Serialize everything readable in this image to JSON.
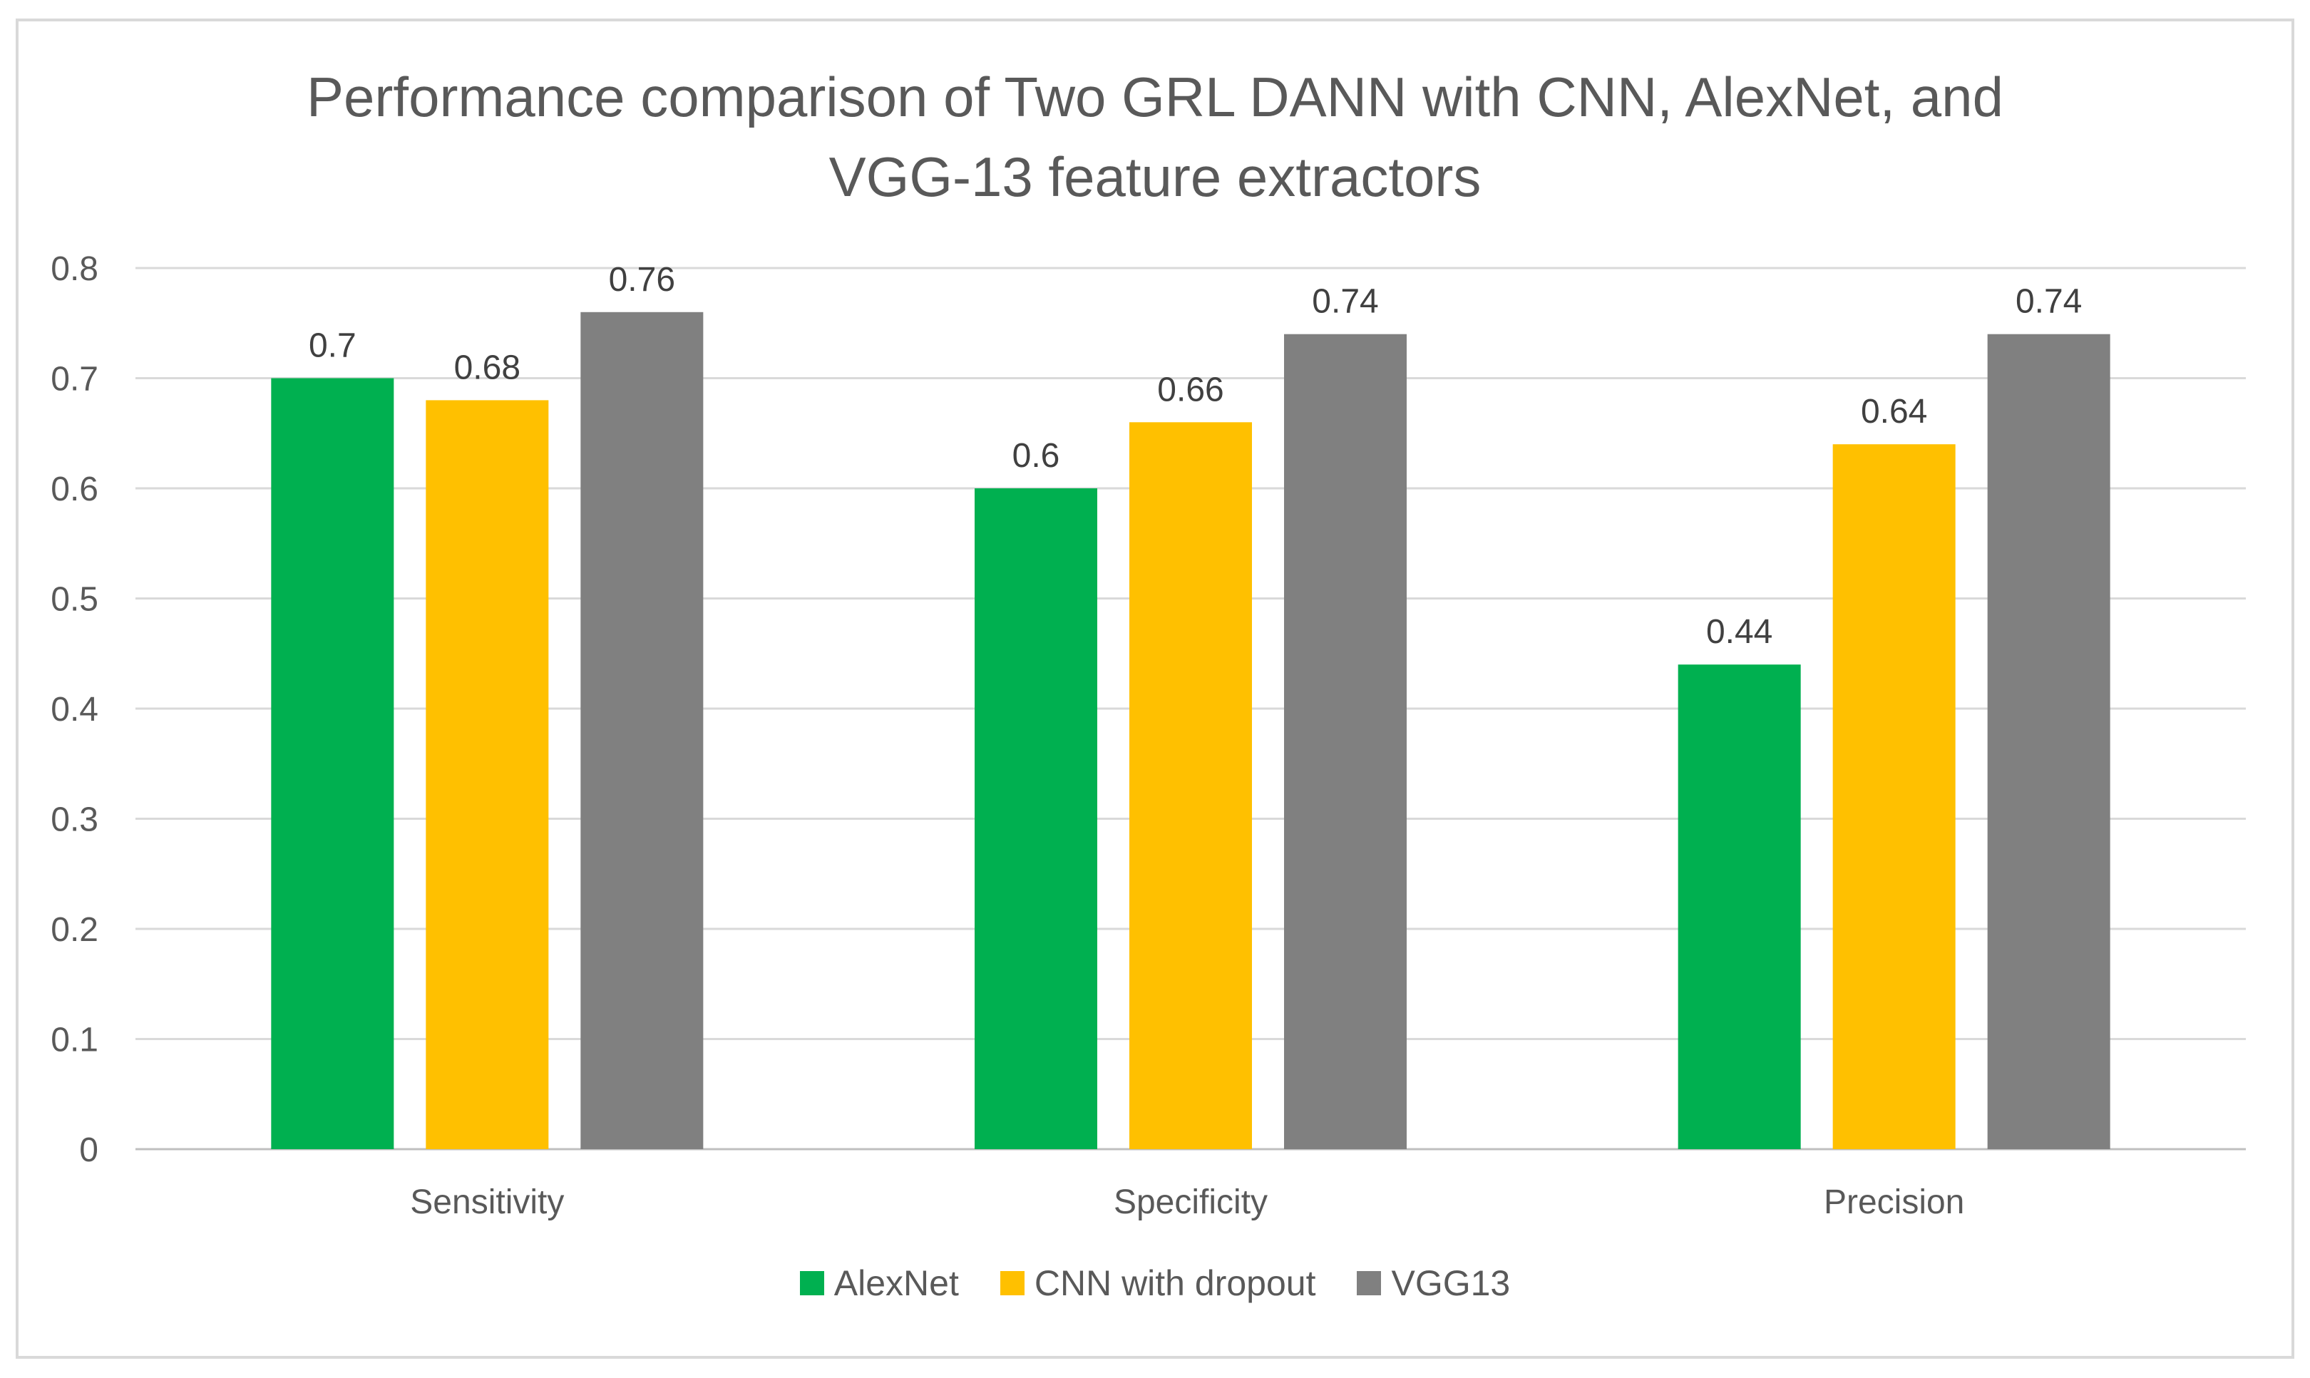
{
  "chart_data": {
    "type": "bar",
    "title": "Performance comparison of Two GRL DANN with CNN, AlexNet, and VGG-13 feature extractors",
    "title_lines": [
      "Performance comparison of Two GRL DANN with CNN, AlexNet, and",
      "VGG-13 feature extractors"
    ],
    "categories": [
      "Sensitivity",
      "Specificity",
      "Precision"
    ],
    "series": [
      {
        "name": "AlexNet",
        "color": "#00b050",
        "values": [
          0.7,
          0.6,
          0.44
        ],
        "labels": [
          "0.7",
          "0.6",
          "0.44"
        ]
      },
      {
        "name": "CNN with dropout",
        "color": "#ffc000",
        "values": [
          0.68,
          0.66,
          0.64
        ],
        "labels": [
          "0.68",
          "0.66",
          "0.64"
        ]
      },
      {
        "name": "VGG13",
        "color": "#808080",
        "values": [
          0.76,
          0.74,
          0.74
        ],
        "labels": [
          "0.76",
          "0.74",
          "0.74"
        ]
      }
    ],
    "ylim": [
      0,
      0.8
    ],
    "yticks": [
      0,
      0.1,
      0.2,
      0.3,
      0.4,
      0.5,
      0.6,
      0.7,
      0.8
    ],
    "ytick_labels": [
      "0",
      "0.1",
      "0.2",
      "0.3",
      "0.4",
      "0.5",
      "0.6",
      "0.7",
      "0.8"
    ],
    "xlabel": "",
    "ylabel": "",
    "grid": true,
    "legend_position": "bottom"
  }
}
